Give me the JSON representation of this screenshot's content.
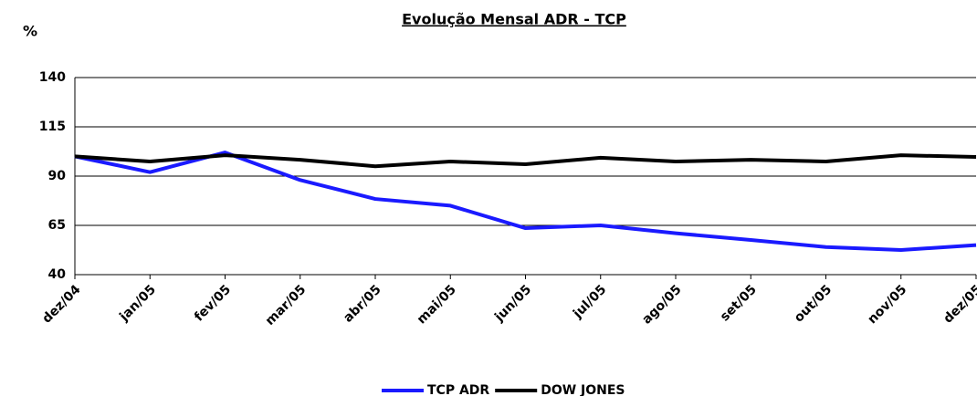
{
  "chart_data": {
    "type": "line",
    "title": "Evolução Mensal ADR - TCP",
    "y_label": "%",
    "categories": [
      "dez/04",
      "jan/05",
      "fev/05",
      "mar/05",
      "abr/05",
      "mai/05",
      "jun/05",
      "jul/05",
      "ago/05",
      "set/05",
      "out/05",
      "nov/05",
      "dez/05"
    ],
    "series": [
      {
        "name": "TCP ADR",
        "color": "#1a1aff",
        "values": [
          100,
          92,
          102,
          88,
          78.4,
          75,
          63.6,
          65,
          61,
          57.6,
          54,
          52.5,
          55
        ]
      },
      {
        "name": "DOW JONES",
        "color": "#000000",
        "values": [
          100,
          97.4,
          100.6,
          98.3,
          95,
          97.4,
          96,
          99.3,
          97.4,
          98.3,
          97.4,
          100.6,
          99.7
        ]
      }
    ],
    "ylim": [
      40,
      140
    ],
    "yticks": [
      40,
      65,
      90,
      115,
      140
    ],
    "grid": true,
    "legend": "bottom"
  }
}
